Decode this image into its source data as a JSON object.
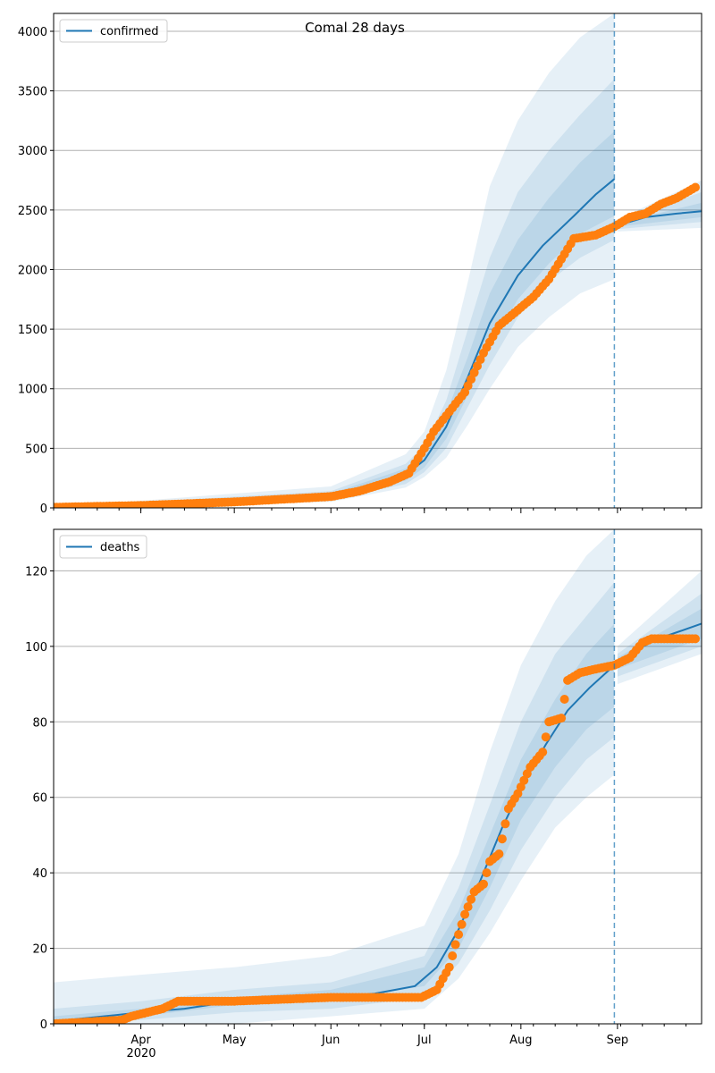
{
  "figure": {
    "title": "Comal 28 days",
    "x_axis": {
      "ticks": [
        {
          "label": "Apr",
          "date": "2020-04-01"
        },
        {
          "label": "May",
          "date": "2020-05-01"
        },
        {
          "label": "Jun",
          "date": "2020-06-01"
        },
        {
          "label": "Jul",
          "date": "2020-07-01"
        },
        {
          "label": "Aug",
          "date": "2020-08-01"
        },
        {
          "label": "Sep",
          "date": "2020-09-01"
        }
      ],
      "year_label": "2020",
      "range": [
        "2020-03-04",
        "2020-09-28"
      ]
    },
    "forecast_date": "2020-08-31",
    "colors": {
      "model": "#1f77b4",
      "observed": "#ff7f0e",
      "band": "#1f77b4",
      "grid": "#b0b0b0",
      "vline": "#1f77b4"
    }
  },
  "chart_data": [
    {
      "type": "line",
      "panel": "top",
      "legend": [
        "confirmed"
      ],
      "legend_position": "upper-left",
      "grid": "horizontal",
      "ylim": [
        0,
        4150
      ],
      "yticks": [
        0,
        500,
        1000,
        1500,
        2000,
        2500,
        3000,
        3500,
        4000
      ],
      "model_line": [
        {
          "x": "2020-03-04",
          "y": 5
        },
        {
          "x": "2020-04-01",
          "y": 30
        },
        {
          "x": "2020-05-01",
          "y": 70
        },
        {
          "x": "2020-06-01",
          "y": 100
        },
        {
          "x": "2020-06-15",
          "y": 160
        },
        {
          "x": "2020-06-25",
          "y": 280
        },
        {
          "x": "2020-07-01",
          "y": 400
        },
        {
          "x": "2020-07-08",
          "y": 680
        },
        {
          "x": "2020-07-15",
          "y": 1100
        },
        {
          "x": "2020-07-22",
          "y": 1550
        },
        {
          "x": "2020-07-31",
          "y": 1950
        },
        {
          "x": "2020-08-08",
          "y": 2200
        },
        {
          "x": "2020-08-18",
          "y": 2450
        },
        {
          "x": "2020-08-25",
          "y": 2630
        },
        {
          "x": "2020-08-31",
          "y": 2760
        },
        {
          "x": "2020-09-01",
          "y": 2370
        },
        {
          "x": "2020-09-10",
          "y": 2440
        },
        {
          "x": "2020-09-20",
          "y": 2470
        },
        {
          "x": "2020-09-28",
          "y": 2490
        }
      ],
      "bands": [
        {
          "level": "outer",
          "points": [
            {
              "x": "2020-03-04",
              "lo": 0,
              "hi": 15
            },
            {
              "x": "2020-04-01",
              "lo": 10,
              "hi": 60
            },
            {
              "x": "2020-05-01",
              "lo": 30,
              "hi": 120
            },
            {
              "x": "2020-06-01",
              "lo": 50,
              "hi": 180
            },
            {
              "x": "2020-06-25",
              "lo": 170,
              "hi": 450
            },
            {
              "x": "2020-07-01",
              "lo": 260,
              "hi": 640
            },
            {
              "x": "2020-07-08",
              "lo": 420,
              "hi": 1150
            },
            {
              "x": "2020-07-15",
              "lo": 700,
              "hi": 1900
            },
            {
              "x": "2020-07-22",
              "lo": 1000,
              "hi": 2700
            },
            {
              "x": "2020-07-31",
              "lo": 1350,
              "hi": 3250
            },
            {
              "x": "2020-08-10",
              "lo": 1600,
              "hi": 3650
            },
            {
              "x": "2020-08-20",
              "lo": 1800,
              "hi": 3950
            },
            {
              "x": "2020-08-31",
              "lo": 1920,
              "hi": 4150
            },
            {
              "x": "2020-09-01",
              "lo": 2320,
              "hi": 2420
            },
            {
              "x": "2020-09-28",
              "lo": 2350,
              "hi": 2750
            }
          ]
        },
        {
          "level": "middle",
          "points": [
            {
              "x": "2020-03-04",
              "lo": 2,
              "hi": 10
            },
            {
              "x": "2020-04-01",
              "lo": 15,
              "hi": 45
            },
            {
              "x": "2020-05-01",
              "lo": 45,
              "hi": 95
            },
            {
              "x": "2020-06-01",
              "lo": 70,
              "hi": 140
            },
            {
              "x": "2020-06-25",
              "lo": 200,
              "hi": 370
            },
            {
              "x": "2020-07-01",
              "lo": 300,
              "hi": 520
            },
            {
              "x": "2020-07-08",
              "lo": 500,
              "hi": 900
            },
            {
              "x": "2020-07-15",
              "lo": 850,
              "hi": 1500
            },
            {
              "x": "2020-07-22",
              "lo": 1200,
              "hi": 2100
            },
            {
              "x": "2020-07-31",
              "lo": 1600,
              "hi": 2650
            },
            {
              "x": "2020-08-10",
              "lo": 1900,
              "hi": 3000
            },
            {
              "x": "2020-08-20",
              "lo": 2100,
              "hi": 3300
            },
            {
              "x": "2020-08-31",
              "lo": 2250,
              "hi": 3600
            },
            {
              "x": "2020-09-01",
              "lo": 2340,
              "hi": 2400
            },
            {
              "x": "2020-09-28",
              "lo": 2400,
              "hi": 2650
            }
          ]
        },
        {
          "level": "inner",
          "points": [
            {
              "x": "2020-03-04",
              "lo": 3,
              "hi": 7
            },
            {
              "x": "2020-04-01",
              "lo": 22,
              "hi": 38
            },
            {
              "x": "2020-05-01",
              "lo": 55,
              "hi": 85
            },
            {
              "x": "2020-06-01",
              "lo": 85,
              "hi": 120
            },
            {
              "x": "2020-06-25",
              "lo": 230,
              "hi": 330
            },
            {
              "x": "2020-07-01",
              "lo": 340,
              "hi": 460
            },
            {
              "x": "2020-07-08",
              "lo": 580,
              "hi": 790
            },
            {
              "x": "2020-07-15",
              "lo": 950,
              "hi": 1270
            },
            {
              "x": "2020-07-22",
              "lo": 1350,
              "hi": 1800
            },
            {
              "x": "2020-07-31",
              "lo": 1750,
              "hi": 2250
            },
            {
              "x": "2020-08-10",
              "lo": 2050,
              "hi": 2600
            },
            {
              "x": "2020-08-20",
              "lo": 2300,
              "hi": 2900
            },
            {
              "x": "2020-08-31",
              "lo": 2450,
              "hi": 3160
            },
            {
              "x": "2020-09-01",
              "lo": 2360,
              "hi": 2390
            },
            {
              "x": "2020-09-28",
              "lo": 2440,
              "hi": 2560
            }
          ]
        }
      ],
      "observed": [
        {
          "x": "2020-03-04",
          "y": 5
        },
        {
          "x": "2020-04-01",
          "y": 20
        },
        {
          "x": "2020-05-01",
          "y": 50
        },
        {
          "x": "2020-06-01",
          "y": 95
        },
        {
          "x": "2020-06-10",
          "y": 140
        },
        {
          "x": "2020-06-20",
          "y": 220
        },
        {
          "x": "2020-06-26",
          "y": 290
        },
        {
          "x": "2020-07-01",
          "y": 500
        },
        {
          "x": "2020-07-04",
          "y": 640
        },
        {
          "x": "2020-07-10",
          "y": 840
        },
        {
          "x": "2020-07-14",
          "y": 970
        },
        {
          "x": "2020-07-20",
          "y": 1300
        },
        {
          "x": "2020-07-25",
          "y": 1530
        },
        {
          "x": "2020-07-31",
          "y": 1660
        },
        {
          "x": "2020-08-05",
          "y": 1770
        },
        {
          "x": "2020-08-10",
          "y": 1920
        },
        {
          "x": "2020-08-15",
          "y": 2130
        },
        {
          "x": "2020-08-18",
          "y": 2260
        },
        {
          "x": "2020-08-25",
          "y": 2290
        },
        {
          "x": "2020-08-31",
          "y": 2360
        },
        {
          "x": "2020-09-05",
          "y": 2440
        },
        {
          "x": "2020-09-10",
          "y": 2470
        },
        {
          "x": "2020-09-15",
          "y": 2550
        },
        {
          "x": "2020-09-20",
          "y": 2600
        },
        {
          "x": "2020-09-26",
          "y": 2690
        }
      ]
    },
    {
      "type": "line",
      "panel": "bottom",
      "legend": [
        "deaths"
      ],
      "legend_position": "upper-left",
      "grid": "horizontal",
      "ylim": [
        0,
        131
      ],
      "yticks": [
        0,
        20,
        40,
        60,
        80,
        100,
        120
      ],
      "model_line": [
        {
          "x": "2020-03-04",
          "y": 0
        },
        {
          "x": "2020-03-08",
          "y": 1
        },
        {
          "x": "2020-03-20",
          "y": 2
        },
        {
          "x": "2020-04-01",
          "y": 3
        },
        {
          "x": "2020-04-15",
          "y": 4
        },
        {
          "x": "2020-05-01",
          "y": 6
        },
        {
          "x": "2020-06-01",
          "y": 7
        },
        {
          "x": "2020-06-15",
          "y": 8
        },
        {
          "x": "2020-06-28",
          "y": 10
        },
        {
          "x": "2020-07-05",
          "y": 15
        },
        {
          "x": "2020-07-12",
          "y": 25
        },
        {
          "x": "2020-07-19",
          "y": 38
        },
        {
          "x": "2020-07-26",
          "y": 52
        },
        {
          "x": "2020-08-02",
          "y": 64
        },
        {
          "x": "2020-08-09",
          "y": 74
        },
        {
          "x": "2020-08-16",
          "y": 83
        },
        {
          "x": "2020-08-23",
          "y": 89
        },
        {
          "x": "2020-08-31",
          "y": 95
        },
        {
          "x": "2020-09-07",
          "y": 99
        },
        {
          "x": "2020-09-14",
          "y": 102
        },
        {
          "x": "2020-09-21",
          "y": 104
        },
        {
          "x": "2020-09-28",
          "y": 106
        }
      ],
      "bands": [
        {
          "level": "outer",
          "points": [
            {
              "x": "2020-03-04",
              "lo": 0,
              "hi": 11
            },
            {
              "x": "2020-04-01",
              "lo": 0,
              "hi": 13
            },
            {
              "x": "2020-05-01",
              "lo": 0,
              "hi": 15
            },
            {
              "x": "2020-06-01",
              "lo": 2,
              "hi": 18
            },
            {
              "x": "2020-07-01",
              "lo": 4,
              "hi": 26
            },
            {
              "x": "2020-07-12",
              "lo": 12,
              "hi": 45
            },
            {
              "x": "2020-07-22",
              "lo": 24,
              "hi": 72
            },
            {
              "x": "2020-08-01",
              "lo": 38,
              "hi": 95
            },
            {
              "x": "2020-08-12",
              "lo": 52,
              "hi": 112
            },
            {
              "x": "2020-08-22",
              "lo": 60,
              "hi": 124
            },
            {
              "x": "2020-08-31",
              "lo": 66,
              "hi": 131
            },
            {
              "x": "2020-09-01",
              "lo": 90,
              "hi": 100
            },
            {
              "x": "2020-09-28",
              "lo": 98,
              "hi": 120
            }
          ]
        },
        {
          "level": "middle",
          "points": [
            {
              "x": "2020-03-04",
              "lo": 0,
              "hi": 4
            },
            {
              "x": "2020-04-01",
              "lo": 1,
              "hi": 6
            },
            {
              "x": "2020-05-01",
              "lo": 3,
              "hi": 9
            },
            {
              "x": "2020-06-01",
              "lo": 4,
              "hi": 11
            },
            {
              "x": "2020-07-01",
              "lo": 7,
              "hi": 18
            },
            {
              "x": "2020-07-12",
              "lo": 16,
              "hi": 36
            },
            {
              "x": "2020-07-22",
              "lo": 30,
              "hi": 58
            },
            {
              "x": "2020-08-01",
              "lo": 46,
              "hi": 80
            },
            {
              "x": "2020-08-12",
              "lo": 60,
              "hi": 98
            },
            {
              "x": "2020-08-22",
              "lo": 70,
              "hi": 108
            },
            {
              "x": "2020-08-31",
              "lo": 76,
              "hi": 117
            },
            {
              "x": "2020-09-01",
              "lo": 92,
              "hi": 98
            },
            {
              "x": "2020-09-28",
              "lo": 100,
              "hi": 114
            }
          ]
        },
        {
          "level": "inner",
          "points": [
            {
              "x": "2020-03-04",
              "lo": 0,
              "hi": 2
            },
            {
              "x": "2020-04-01",
              "lo": 2,
              "hi": 4
            },
            {
              "x": "2020-05-01",
              "lo": 5,
              "hi": 7
            },
            {
              "x": "2020-06-01",
              "lo": 6,
              "hi": 9
            },
            {
              "x": "2020-07-01",
              "lo": 10,
              "hi": 15
            },
            {
              "x": "2020-07-12",
              "lo": 20,
              "hi": 30
            },
            {
              "x": "2020-07-22",
              "lo": 36,
              "hi": 50
            },
            {
              "x": "2020-08-01",
              "lo": 54,
              "hi": 70
            },
            {
              "x": "2020-08-12",
              "lo": 68,
              "hi": 86
            },
            {
              "x": "2020-08-22",
              "lo": 78,
              "hi": 98
            },
            {
              "x": "2020-08-31",
              "lo": 84,
              "hi": 106
            },
            {
              "x": "2020-09-01",
              "lo": 94,
              "hi": 97
            },
            {
              "x": "2020-09-28",
              "lo": 102,
              "hi": 110
            }
          ]
        }
      ],
      "observed": [
        {
          "x": "2020-03-04",
          "y": 0
        },
        {
          "x": "2020-03-26",
          "y": 1
        },
        {
          "x": "2020-03-29",
          "y": 2
        },
        {
          "x": "2020-04-08",
          "y": 4
        },
        {
          "x": "2020-04-13",
          "y": 6
        },
        {
          "x": "2020-05-01",
          "y": 6
        },
        {
          "x": "2020-06-01",
          "y": 7
        },
        {
          "x": "2020-06-30",
          "y": 7
        },
        {
          "x": "2020-07-05",
          "y": 9
        },
        {
          "x": "2020-07-09",
          "y": 15
        },
        {
          "x": "2020-07-11",
          "y": 21
        },
        {
          "x": "2020-07-14",
          "y": 29
        },
        {
          "x": "2020-07-17",
          "y": 35
        },
        {
          "x": "2020-07-20",
          "y": 37
        },
        {
          "x": "2020-07-22",
          "y": 43
        },
        {
          "x": "2020-07-25",
          "y": 45
        },
        {
          "x": "2020-07-28",
          "y": 57
        },
        {
          "x": "2020-07-31",
          "y": 61
        },
        {
          "x": "2020-08-04",
          "y": 68
        },
        {
          "x": "2020-08-08",
          "y": 72
        },
        {
          "x": "2020-08-10",
          "y": 80
        },
        {
          "x": "2020-08-14",
          "y": 81
        },
        {
          "x": "2020-08-16",
          "y": 91
        },
        {
          "x": "2020-08-20",
          "y": 93
        },
        {
          "x": "2020-08-25",
          "y": 94
        },
        {
          "x": "2020-08-31",
          "y": 95
        },
        {
          "x": "2020-09-05",
          "y": 97
        },
        {
          "x": "2020-09-09",
          "y": 101
        },
        {
          "x": "2020-09-12",
          "y": 102
        },
        {
          "x": "2020-09-26",
          "y": 102
        }
      ]
    }
  ]
}
